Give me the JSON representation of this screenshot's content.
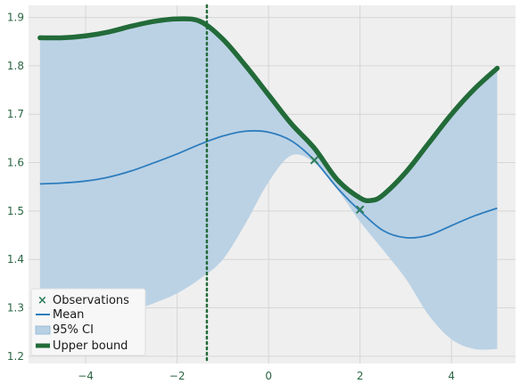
{
  "chart_data": {
    "type": "line",
    "title": "",
    "xlabel": "",
    "ylabel": "",
    "xlim": [
      -5.25,
      5.4
    ],
    "ylim": [
      1.185,
      1.925
    ],
    "grid": true,
    "legend_placement": "lower-left",
    "xticks": [
      -4,
      -2,
      0,
      2,
      4
    ],
    "yticks": [
      1.2,
      1.3,
      1.4,
      1.5,
      1.6,
      1.7,
      1.8,
      1.9
    ],
    "vertical_line_x": -1.35,
    "series": [
      {
        "name": "Observations",
        "kind": "scatter",
        "color": "#2e7d5b",
        "x": [
          1.0,
          2.0
        ],
        "y": [
          1.605,
          1.503
        ]
      },
      {
        "name": "Mean",
        "kind": "line",
        "color": "#2e7dbd",
        "x": [
          -5.0,
          -4.5,
          -4.0,
          -3.5,
          -3.0,
          -2.5,
          -2.0,
          -1.5,
          -1.0,
          -0.5,
          0.0,
          0.5,
          1.0,
          1.5,
          2.0,
          2.5,
          3.0,
          3.5,
          4.0,
          4.5,
          5.0
        ],
        "y": [
          1.556,
          1.558,
          1.562,
          1.57,
          1.583,
          1.6,
          1.618,
          1.638,
          1.655,
          1.665,
          1.663,
          1.645,
          1.605,
          1.548,
          1.5,
          1.46,
          1.445,
          1.45,
          1.47,
          1.49,
          1.506
        ]
      },
      {
        "name": "95% CI",
        "kind": "band",
        "color": "#b7d0e4",
        "x": [
          -5.0,
          -4.5,
          -4.0,
          -3.5,
          -3.0,
          -2.5,
          -2.0,
          -1.5,
          -1.0,
          -0.5,
          0.0,
          0.5,
          1.0,
          1.5,
          2.0,
          2.5,
          3.0,
          3.5,
          4.0,
          4.5,
          5.0
        ],
        "lower": [
          1.26,
          1.262,
          1.268,
          1.278,
          1.293,
          1.31,
          1.33,
          1.36,
          1.4,
          1.475,
          1.56,
          1.615,
          1.6,
          1.545,
          1.478,
          1.42,
          1.36,
          1.285,
          1.235,
          1.215,
          1.215
        ],
        "upper": [
          1.858,
          1.858,
          1.862,
          1.87,
          1.882,
          1.892,
          1.897,
          1.892,
          1.855,
          1.8,
          1.74,
          1.68,
          1.63,
          1.565,
          1.525,
          1.533,
          1.58,
          1.64,
          1.7,
          1.752,
          1.795
        ]
      },
      {
        "name": "Upper bound",
        "kind": "line",
        "color": "#226b39",
        "x": [
          -5.0,
          -4.5,
          -4.0,
          -3.5,
          -3.0,
          -2.5,
          -2.0,
          -1.5,
          -1.0,
          -0.5,
          0.0,
          0.5,
          1.0,
          1.5,
          2.0,
          2.25,
          2.5,
          3.0,
          3.5,
          4.0,
          4.5,
          5.0
        ],
        "y": [
          1.858,
          1.858,
          1.862,
          1.87,
          1.882,
          1.892,
          1.897,
          1.892,
          1.855,
          1.8,
          1.74,
          1.68,
          1.63,
          1.565,
          1.527,
          1.522,
          1.533,
          1.58,
          1.64,
          1.7,
          1.752,
          1.795
        ]
      }
    ]
  }
}
